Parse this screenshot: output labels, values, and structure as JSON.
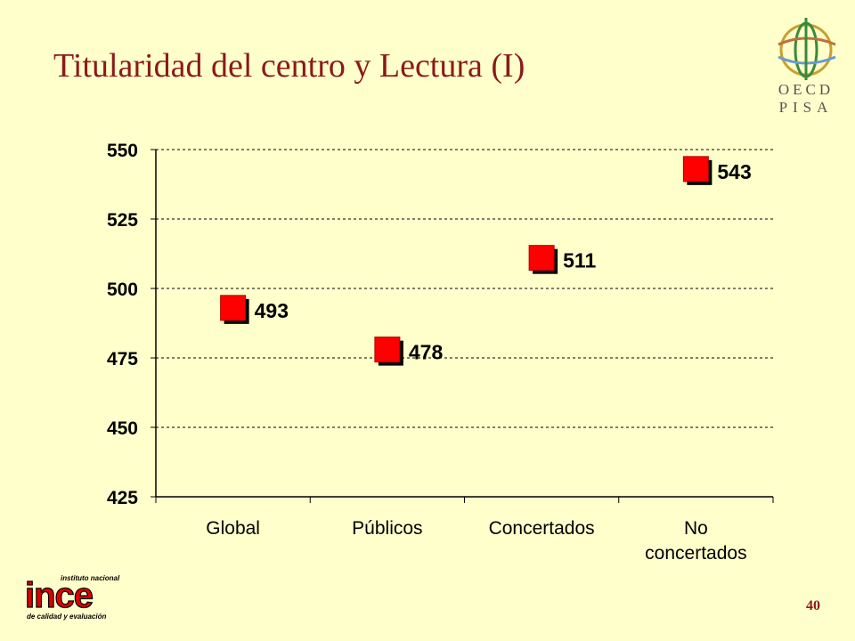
{
  "slide": {
    "title": "Titularidad del centro y Lectura (I)",
    "page_number": "40"
  },
  "logos": {
    "oecd_line1": "OECD",
    "oecd_line2": "PISA",
    "ince_small_top": "instituto nacional",
    "ince_main": "ince",
    "ince_small_bottom": "de calidad y evaluación"
  },
  "colors": {
    "background": "#FFFFCC",
    "title": "#8B1A1A",
    "marker": "#FF0000",
    "marker_shadow": "#000000"
  },
  "chart_data": {
    "type": "scatter",
    "categories": [
      "Global",
      "Públicos",
      "Concertados",
      "No concertados"
    ],
    "category_lines": [
      [
        "Global"
      ],
      [
        "Públicos"
      ],
      [
        "Concertados"
      ],
      [
        "No",
        "concertados"
      ]
    ],
    "values": [
      493,
      478,
      511,
      543
    ],
    "data_labels": [
      "493",
      "478",
      "511",
      "543"
    ],
    "ylim": [
      425,
      550
    ],
    "yticks": [
      425,
      450,
      475,
      500,
      525,
      550
    ],
    "grid": true,
    "marker": "square"
  }
}
